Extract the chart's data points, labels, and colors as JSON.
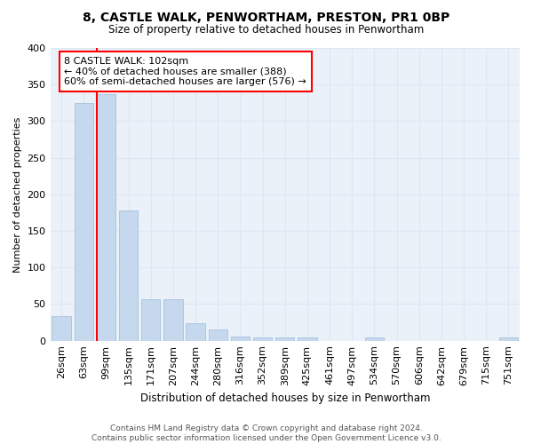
{
  "title1": "8, CASTLE WALK, PENWORTHAM, PRESTON, PR1 0BP",
  "title2": "Size of property relative to detached houses in Penwortham",
  "xlabel": "Distribution of detached houses by size in Penwortham",
  "ylabel": "Number of detached properties",
  "bar_labels": [
    "26sqm",
    "63sqm",
    "99sqm",
    "135sqm",
    "171sqm",
    "207sqm",
    "244sqm",
    "280sqm",
    "316sqm",
    "352sqm",
    "389sqm",
    "425sqm",
    "461sqm",
    "497sqm",
    "534sqm",
    "570sqm",
    "606sqm",
    "642sqm",
    "679sqm",
    "715sqm",
    "751sqm"
  ],
  "bar_values": [
    33,
    325,
    337,
    178,
    57,
    57,
    24,
    15,
    6,
    5,
    4,
    4,
    0,
    0,
    4,
    0,
    0,
    0,
    0,
    0,
    4
  ],
  "bar_color": "#c5d8ee",
  "bar_edge_color": "#9bbbd8",
  "vline_bar_index": 2,
  "annotation_text": "8 CASTLE WALK: 102sqm\n← 40% of detached houses are smaller (388)\n60% of semi-detached houses are larger (576) →",
  "annotation_box_color": "white",
  "annotation_box_edge_color": "red",
  "vline_color": "red",
  "grid_color": "#dbe8f5",
  "background_color": "#eaf1f9",
  "footnote1": "Contains HM Land Registry data © Crown copyright and database right 2024.",
  "footnote2": "Contains public sector information licensed under the Open Government Licence v3.0.",
  "ylim": [
    0,
    400
  ],
  "yticks": [
    0,
    50,
    100,
    150,
    200,
    250,
    300,
    350,
    400
  ]
}
